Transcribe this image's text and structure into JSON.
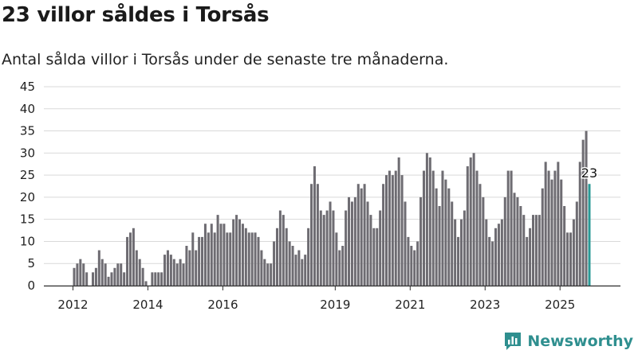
{
  "header": {
    "title": "23 villor såldes i Torsås",
    "subtitle": "Antal sålda villor i Torsås under de senaste tre månaderna."
  },
  "brand": {
    "name": "Newsworthy",
    "logo_icon": "bar-chart-logo-icon"
  },
  "colors": {
    "bar": "#6e6c72",
    "highlight": "#2a9a96",
    "grid": "#d9d9d9",
    "axis": "#333333",
    "text": "#222222"
  },
  "chart_data": {
    "type": "bar",
    "x_start": "2012-01",
    "interval": "monthly",
    "x_ticks": [
      "2012",
      "2014",
      "2016",
      "2019",
      "2021",
      "2023",
      "2025"
    ],
    "y_ticks": [
      0,
      5,
      10,
      15,
      20,
      25,
      30,
      35,
      40,
      45
    ],
    "ylim": [
      0,
      45
    ],
    "grid": true,
    "highlight_label": "23",
    "values": [
      4,
      5,
      6,
      5,
      3,
      0,
      3,
      4,
      8,
      6,
      5,
      2,
      3,
      4,
      5,
      5,
      3,
      11,
      12,
      13,
      8,
      6,
      4,
      1,
      0,
      3,
      3,
      3,
      3,
      7,
      8,
      7,
      6,
      5,
      6,
      5,
      9,
      8,
      12,
      8,
      11,
      11,
      14,
      12,
      14,
      12,
      16,
      14,
      14,
      12,
      12,
      15,
      16,
      15,
      14,
      13,
      12,
      12,
      12,
      11,
      8,
      6,
      5,
      5,
      10,
      13,
      17,
      16,
      13,
      10,
      9,
      7,
      8,
      6,
      7,
      13,
      23,
      27,
      23,
      17,
      16,
      17,
      19,
      17,
      12,
      8,
      9,
      17,
      20,
      19,
      20,
      23,
      22,
      23,
      19,
      16,
      13,
      13,
      17,
      23,
      25,
      26,
      25,
      26,
      29,
      25,
      19,
      11,
      9,
      8,
      10,
      20,
      26,
      30,
      29,
      26,
      22,
      18,
      26,
      24,
      22,
      19,
      15,
      11,
      15,
      17,
      27,
      29,
      30,
      26,
      23,
      20,
      15,
      11,
      10,
      13,
      14,
      15,
      20,
      26,
      26,
      21,
      20,
      18,
      16,
      11,
      13,
      16,
      16,
      16,
      22,
      28,
      26,
      24,
      26,
      28,
      24,
      18,
      12,
      12,
      15,
      19,
      28,
      33,
      35,
      23
    ]
  }
}
